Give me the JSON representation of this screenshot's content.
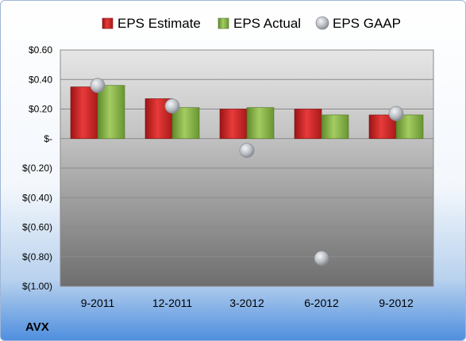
{
  "chart_data": {
    "type": "bar",
    "categories": [
      "9-2011",
      "12-2011",
      "3-2012",
      "6-2012",
      "9-2012"
    ],
    "series": [
      {
        "name": "EPS Estimate",
        "kind": "bar",
        "color": "#d42a2a",
        "values": [
          0.35,
          0.27,
          0.2,
          0.2,
          0.16
        ]
      },
      {
        "name": "EPS Actual",
        "kind": "bar",
        "color": "#8db84a",
        "values": [
          0.36,
          0.21,
          0.21,
          0.16,
          0.16
        ]
      },
      {
        "name": "EPS GAAP",
        "kind": "scatter",
        "color": "#b8bcc2",
        "values": [
          0.36,
          0.22,
          -0.08,
          -0.81,
          0.17
        ]
      }
    ],
    "ylim": [
      -1.0,
      0.6
    ],
    "yticks": [
      {
        "value": 0.6,
        "label": "$0.60"
      },
      {
        "value": 0.4,
        "label": "$0.40"
      },
      {
        "value": 0.2,
        "label": "$0.20"
      },
      {
        "value": 0.0,
        "label": "$-"
      },
      {
        "value": -0.2,
        "label": "$(0.20)"
      },
      {
        "value": -0.4,
        "label": "$(0.40)"
      },
      {
        "value": -0.6,
        "label": "$(0.60)"
      },
      {
        "value": -0.8,
        "label": "$(0.80)"
      },
      {
        "value": -1.0,
        "label": "$(1.00)"
      }
    ],
    "grid": true,
    "legend_position": "top",
    "ticker": "AVX"
  }
}
